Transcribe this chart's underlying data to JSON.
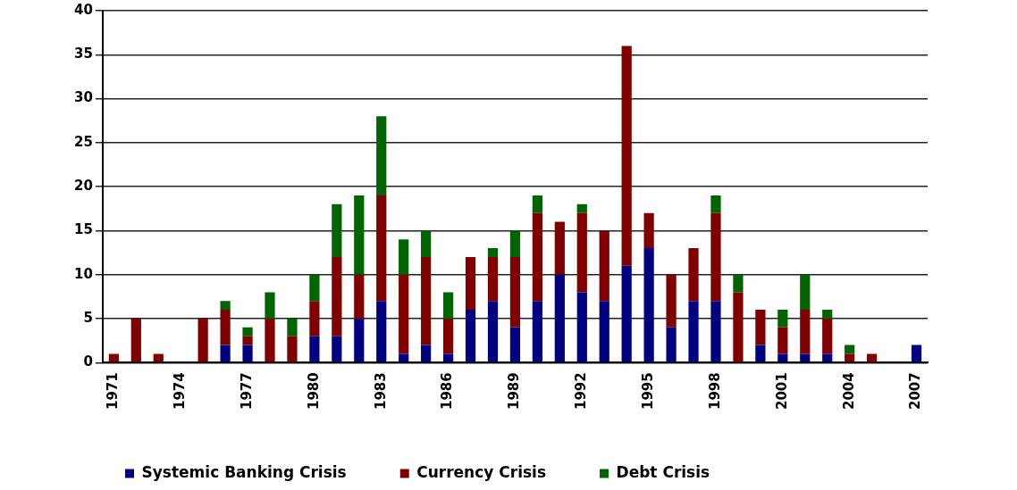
{
  "chart_data": {
    "type": "bar",
    "stacked": true,
    "grid": "y",
    "legend": "bottom",
    "categories": [
      "1971",
      null,
      null,
      "1974",
      null,
      null,
      "1977",
      null,
      null,
      "1980",
      null,
      null,
      "1983",
      null,
      null,
      "1986",
      null,
      null,
      "1989",
      null,
      null,
      "1992",
      null,
      null,
      "1995",
      null,
      null,
      "1998",
      null,
      null,
      "2001",
      null,
      null,
      "2004",
      null,
      null,
      "2007"
    ],
    "ylim": [
      0,
      40
    ],
    "yticks": [
      0,
      5,
      10,
      15,
      20,
      25,
      30,
      35,
      40
    ],
    "series": [
      {
        "name": "Systemic Banking Crisis",
        "color": "#000080",
        "values": [
          0,
          0,
          0,
          0,
          0,
          2,
          2,
          0,
          0,
          3,
          3,
          5,
          7,
          1,
          2,
          1,
          6,
          7,
          4,
          7,
          10,
          8,
          7,
          11,
          13,
          4,
          7,
          7,
          0,
          2,
          1,
          1,
          1,
          0,
          0,
          0,
          2
        ]
      },
      {
        "name": "Currency Crisis",
        "color": "#800000",
        "values": [
          1,
          5,
          1,
          0,
          5,
          4,
          1,
          5,
          3,
          4,
          9,
          5,
          12,
          9,
          10,
          4,
          6,
          5,
          8,
          10,
          6,
          9,
          8,
          25,
          4,
          6,
          6,
          10,
          8,
          4,
          3,
          5,
          4,
          1,
          1,
          0,
          0
        ]
      },
      {
        "name": "Debt Crisis",
        "color": "#006400",
        "values": [
          0,
          0,
          0,
          0,
          0,
          1,
          1,
          3,
          2,
          3,
          6,
          9,
          9,
          4,
          3,
          3,
          0,
          1,
          3,
          2,
          0,
          1,
          0,
          0,
          0,
          0,
          0,
          2,
          2,
          0,
          2,
          4,
          1,
          1,
          0,
          0,
          0
        ]
      }
    ]
  }
}
